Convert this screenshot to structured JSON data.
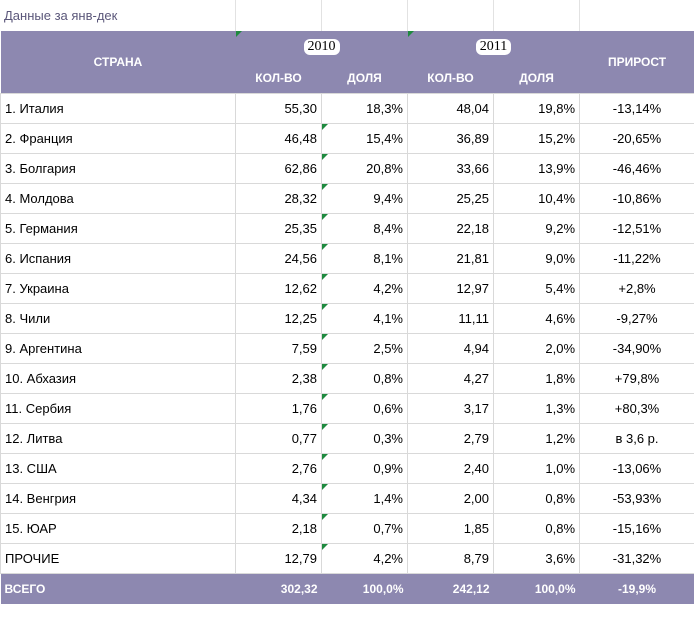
{
  "caption": "Данные за янв-дек",
  "headers": {
    "country": "СТРАНА",
    "year1": "2010",
    "year2": "2011",
    "growth": "ПРИРОСТ",
    "qty": "КОЛ-ВО",
    "share": "ДОЛЯ"
  },
  "rows": [
    {
      "name": "1. Италия",
      "q2010": "55,30",
      "s2010": "18,3%",
      "q2011": "48,04",
      "s2011": "19,8%",
      "growth": "-13,14%"
    },
    {
      "name": "2. Франция",
      "q2010": "46,48",
      "s2010": "15,4%",
      "q2011": "36,89",
      "s2011": "15,2%",
      "growth": "-20,65%"
    },
    {
      "name": "3. Болгария",
      "q2010": "62,86",
      "s2010": "20,8%",
      "q2011": "33,66",
      "s2011": "13,9%",
      "growth": "-46,46%"
    },
    {
      "name": "4. Молдова",
      "q2010": "28,32",
      "s2010": "9,4%",
      "q2011": "25,25",
      "s2011": "10,4%",
      "growth": "-10,86%"
    },
    {
      "name": "5. Германия",
      "q2010": "25,35",
      "s2010": "8,4%",
      "q2011": "22,18",
      "s2011": "9,2%",
      "growth": "-12,51%"
    },
    {
      "name": "6. Испания",
      "q2010": "24,56",
      "s2010": "8,1%",
      "q2011": "21,81",
      "s2011": "9,0%",
      "growth": "-11,22%"
    },
    {
      "name": "7. Украина",
      "q2010": "12,62",
      "s2010": "4,2%",
      "q2011": "12,97",
      "s2011": "5,4%",
      "growth": "+2,8%"
    },
    {
      "name": "8. Чили",
      "q2010": "12,25",
      "s2010": "4,1%",
      "q2011": "11,11",
      "s2011": "4,6%",
      "growth": "-9,27%"
    },
    {
      "name": "9. Аргентина",
      "q2010": "7,59",
      "s2010": "2,5%",
      "q2011": "4,94",
      "s2011": "2,0%",
      "growth": "-34,90%"
    },
    {
      "name": "10. Абхазия",
      "q2010": "2,38",
      "s2010": "0,8%",
      "q2011": "4,27",
      "s2011": "1,8%",
      "growth": "+79,8%"
    },
    {
      "name": "11. Сербия",
      "q2010": "1,76",
      "s2010": "0,6%",
      "q2011": "3,17",
      "s2011": "1,3%",
      "growth": "+80,3%"
    },
    {
      "name": "12. Литва",
      "q2010": "0,77",
      "s2010": "0,3%",
      "q2011": "2,79",
      "s2011": "1,2%",
      "growth": "в 3,6 р."
    },
    {
      "name": "13. США",
      "q2010": "2,76",
      "s2010": "0,9%",
      "q2011": "2,40",
      "s2011": "1,0%",
      "growth": "-13,06%"
    },
    {
      "name": "14. Венгрия",
      "q2010": "4,34",
      "s2010": "1,4%",
      "q2011": "2,00",
      "s2011": "0,8%",
      "growth": "-53,93%"
    },
    {
      "name": "15. ЮАР",
      "q2010": "2,18",
      "s2010": "0,7%",
      "q2011": "1,85",
      "s2011": "0,8%",
      "growth": "-15,16%"
    },
    {
      "name": "ПРОЧИЕ",
      "q2010": "12,79",
      "s2010": "4,2%",
      "q2011": "8,79",
      "s2011": "3,6%",
      "growth": "-31,32%"
    }
  ],
  "total": {
    "name": "ВСЕГО",
    "q2010": "302,32",
    "s2010": "100,0%",
    "q2011": "242,12",
    "s2011": "100,0%",
    "growth": "-19,9%"
  },
  "colors": {
    "header_bg": "#8d88b0",
    "header_text": "#ffffff",
    "corner_marker": "#1e8a3e",
    "grid": "#d9d9d9",
    "caption_text": "#5b577a"
  }
}
